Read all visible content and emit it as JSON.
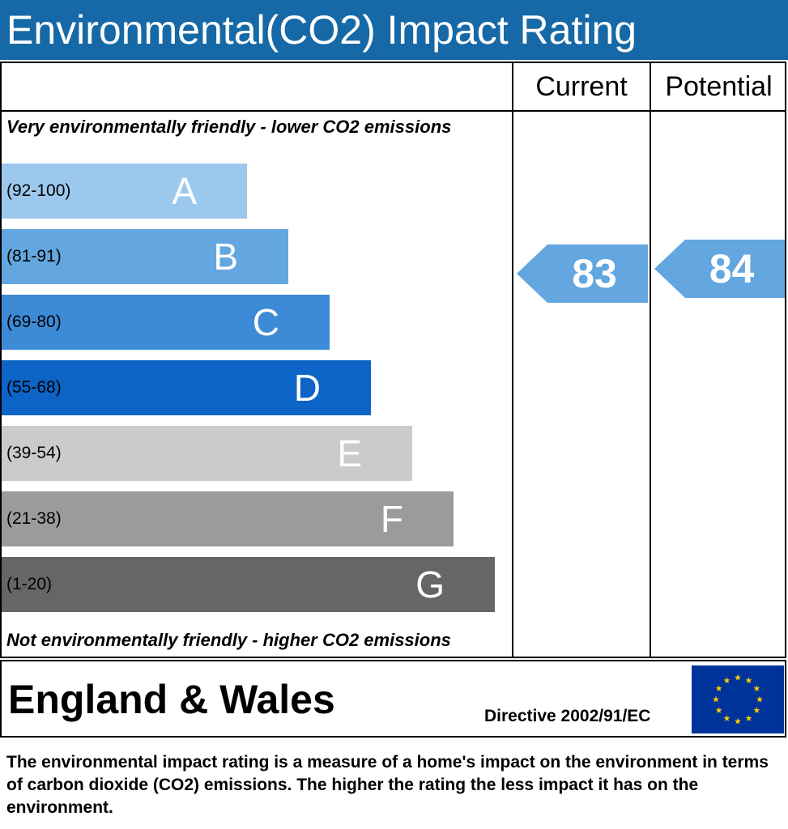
{
  "header": {
    "title": "Environmental(CO2) Impact Rating"
  },
  "columns": {
    "current": "Current",
    "potential": "Potential"
  },
  "notes": {
    "top": "Very environmentally friendly - lower CO2 emissions",
    "bottom": "Not environmentally friendly - higher CO2 emissions"
  },
  "chart_data": {
    "type": "bar",
    "title": "Environmental(CO2) Impact Rating",
    "bands": [
      {
        "letter": "A",
        "range": "(92-100)",
        "min": 92,
        "max": 100,
        "color": "#9cc8ee"
      },
      {
        "letter": "B",
        "range": "(81-91)",
        "min": 81,
        "max": 91,
        "color": "#63a6e0"
      },
      {
        "letter": "C",
        "range": "(69-80)",
        "min": 69,
        "max": 80,
        "color": "#3d8ad6"
      },
      {
        "letter": "D",
        "range": "(55-68)",
        "min": 55,
        "max": 68,
        "color": "#0c64c6"
      },
      {
        "letter": "E",
        "range": "(39-54)",
        "min": 39,
        "max": 54,
        "color": "#cbcbcb"
      },
      {
        "letter": "F",
        "range": "(21-38)",
        "min": 21,
        "max": 38,
        "color": "#9b9b9b"
      },
      {
        "letter": "G",
        "range": "(1-20)",
        "min": 1,
        "max": 20,
        "color": "#666666"
      }
    ],
    "current": {
      "value": "83",
      "band": "B",
      "color": "#63a6e0"
    },
    "potential": {
      "value": "84",
      "band": "B",
      "color": "#63a6e0"
    }
  },
  "footer": {
    "region": "England & Wales",
    "directive": "Directive 2002/91/EC"
  },
  "description": "The environmental impact rating is a measure of a home's impact on the environment in terms of carbon dioxide (CO2) emissions. The higher the rating the less impact it has on the environment.",
  "flag": {
    "icon": "eu-flag-icon",
    "background": "#003399",
    "stars": "#ffcc00"
  }
}
